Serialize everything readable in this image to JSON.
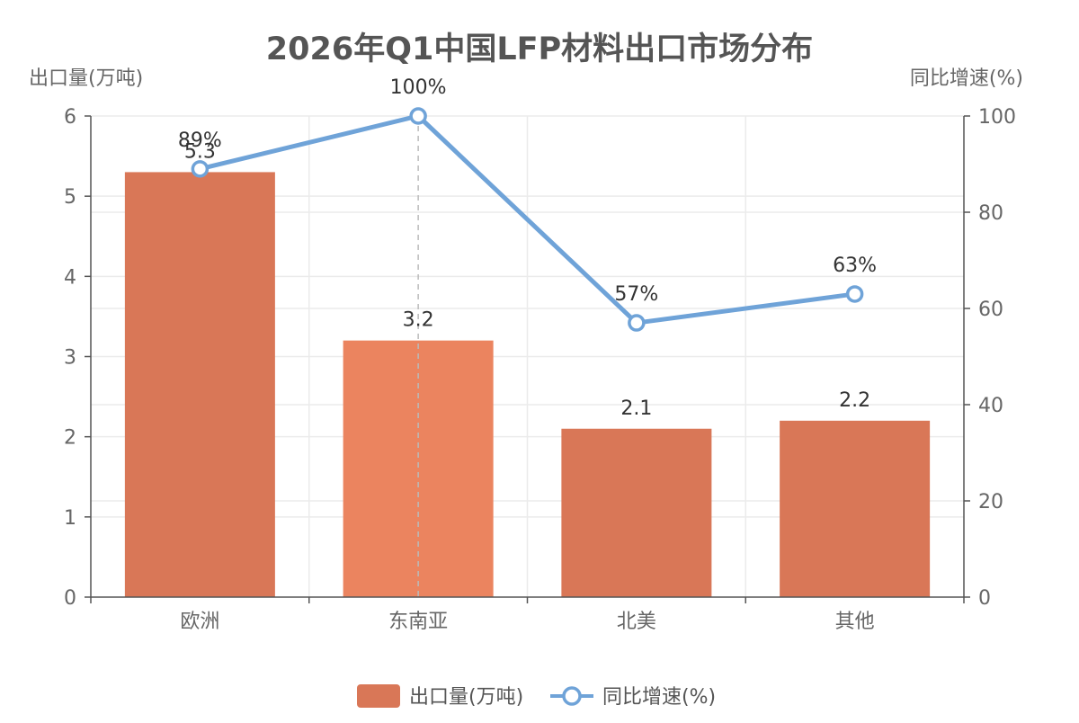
{
  "chart_data": {
    "type": "bar",
    "title": "2026年Q1中国LFP材料出口市场分布",
    "categories": [
      "欧洲",
      "东南亚",
      "北美",
      "其他"
    ],
    "y_left": {
      "label": "出口量(万吨)",
      "range": [
        0,
        6
      ],
      "ticks": [
        0,
        1,
        2,
        3,
        4,
        5,
        6
      ]
    },
    "y_right": {
      "label": "同比增速(%)",
      "range": [
        0,
        100
      ],
      "ticks": [
        0,
        20,
        40,
        60,
        80,
        100
      ]
    },
    "series": [
      {
        "name": "出口量(万吨)",
        "type": "bar",
        "axis": "left",
        "values": [
          5.3,
          3.2,
          2.1,
          2.2
        ],
        "labels": [
          "5.3",
          "3.2",
          "2.1",
          "2.2"
        ],
        "color": "#d97757",
        "highlight_color": "#eb845f",
        "highlight_index": 1
      },
      {
        "name": "同比增速(%)",
        "type": "line",
        "axis": "right",
        "values": [
          89,
          100,
          57,
          63
        ],
        "labels": [
          "89%",
          "100%",
          "57%",
          "63%"
        ],
        "color": "#6fa3d8"
      }
    ],
    "grid": true,
    "legend_position": "bottom-center",
    "hover_index": 1
  },
  "colors": {
    "title": "#555555",
    "axis_text": "#666666",
    "axis_line": "#555555",
    "grid": "#ebebeb",
    "label_text": "#333333",
    "legend_text": "#555555",
    "hover_line": "#bbbbbb"
  }
}
